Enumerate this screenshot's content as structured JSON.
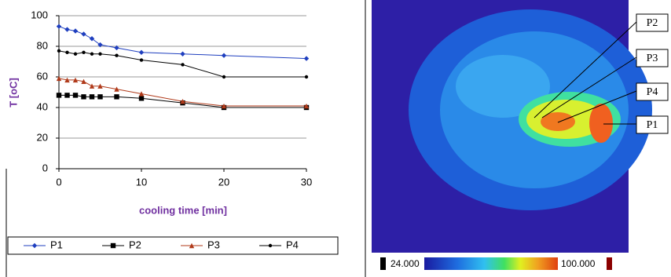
{
  "chart_data": {
    "type": "line",
    "x_label": "cooling time [min]",
    "y_label": "T [oC]",
    "xlim": [
      0,
      30
    ],
    "xticks": [
      0,
      10,
      20,
      30
    ],
    "ylim": [
      0,
      100
    ],
    "yticks": [
      0,
      20,
      40,
      60,
      80,
      100
    ],
    "grid": true,
    "series": [
      {
        "name": "P1",
        "color": "#1f3fbf",
        "marker": "diamond",
        "x": [
          0,
          1,
          2,
          3,
          4,
          5,
          7,
          10,
          15,
          20,
          30
        ],
        "values": [
          93,
          91,
          90,
          88,
          85,
          81,
          79,
          76,
          75,
          74,
          72
        ]
      },
      {
        "name": "P2",
        "color": "#000000",
        "marker": "square",
        "x": [
          0,
          1,
          2,
          3,
          4,
          5,
          7,
          10,
          15,
          20,
          30
        ],
        "values": [
          48,
          48,
          48,
          47,
          47,
          47,
          47,
          46,
          43,
          40,
          40
        ]
      },
      {
        "name": "P3",
        "color": "#b03a1a",
        "marker": "triangle",
        "x": [
          0,
          1,
          2,
          3,
          4,
          5,
          7,
          10,
          15,
          20,
          30
        ],
        "values": [
          59,
          58,
          58,
          57,
          54,
          54,
          52,
          49,
          44,
          41,
          41
        ]
      },
      {
        "name": "P4",
        "color": "#000000",
        "marker": "circle",
        "x": [
          0,
          1,
          2,
          3,
          4,
          5,
          7,
          10,
          15,
          20,
          30
        ],
        "values": [
          77,
          76,
          75,
          76,
          75,
          75,
          74,
          71,
          68,
          60,
          60
        ]
      }
    ]
  },
  "thermal_image": {
    "point_labels": [
      "P2",
      "P3",
      "P4",
      "P1"
    ],
    "colorbar_min": "24.000",
    "colorbar_max": "100.000"
  }
}
